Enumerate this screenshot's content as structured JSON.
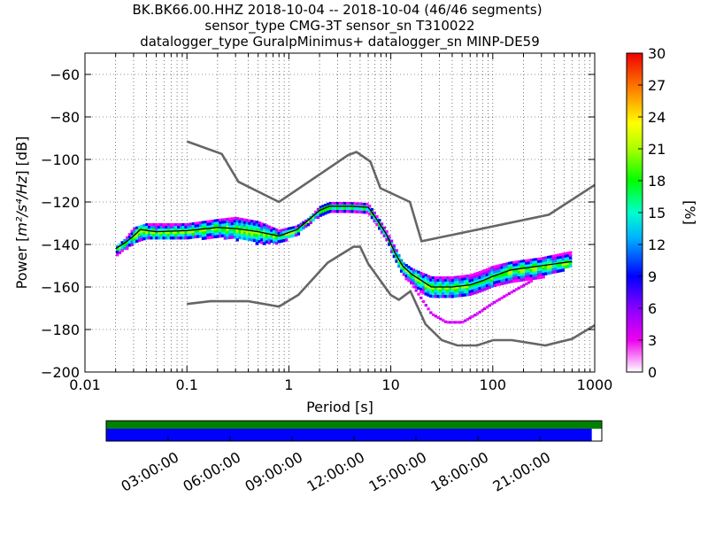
{
  "title": {
    "line1": "BK.BK66.00.HHZ   2018-10-04 -- 2018-10-04  (46/46 segments)",
    "line2": "sensor_type CMG-3T sensor_sn T310022",
    "line3": "datalogger_type GuralpMinimus+ datalogger_sn MINP-DE59"
  },
  "chart_data": {
    "type": "heatmap",
    "xlabel": "Period [s]",
    "ylabel_prefix": "Power [",
    "ylabel_unit": "m²/s⁴/Hz",
    "ylabel_suffix": "] [dB]",
    "x_scale": "log",
    "xlim": [
      0.01,
      1000
    ],
    "ylim": [
      -200,
      -50
    ],
    "x_ticks": [
      0.01,
      0.1,
      1,
      10,
      100,
      1000
    ],
    "x_tick_labels": [
      "0.01",
      "0.1",
      "1",
      "10",
      "100",
      "1000"
    ],
    "y_ticks": [
      -200,
      -180,
      -160,
      -140,
      -120,
      -100,
      -80,
      -60
    ],
    "y_tick_labels": [
      "−200",
      "−180",
      "−160",
      "−140",
      "−120",
      "−100",
      "−80",
      "−60"
    ],
    "grid": true,
    "colorbar": {
      "label": "[%]",
      "ticks": [
        "0",
        "3",
        "6",
        "9",
        "12",
        "15",
        "18",
        "21",
        "24",
        "27",
        "30"
      ],
      "range": [
        0,
        30
      ]
    },
    "nhnm": [
      [
        0.1,
        -91.5
      ],
      [
        0.22,
        -97.4
      ],
      [
        0.32,
        -110.5
      ],
      [
        0.8,
        -120
      ],
      [
        3.8,
        -98
      ],
      [
        4.6,
        -96.5
      ],
      [
        6.3,
        -101
      ],
      [
        7.9,
        -113.5
      ],
      [
        15.4,
        -120
      ],
      [
        20,
        -138.5
      ],
      [
        354.8,
        -126
      ],
      [
        1000,
        -112
      ]
    ],
    "nlnm": [
      [
        0.1,
        -168
      ],
      [
        0.17,
        -166.7
      ],
      [
        0.4,
        -166.7
      ],
      [
        0.8,
        -169.2
      ],
      [
        1.24,
        -163.7
      ],
      [
        2.4,
        -148.6
      ],
      [
        4.3,
        -141.1
      ],
      [
        5,
        -141.1
      ],
      [
        6,
        -149
      ],
      [
        10,
        -163.8
      ],
      [
        12,
        -166
      ],
      [
        15.6,
        -162
      ],
      [
        21.9,
        -177.5
      ],
      [
        31.6,
        -185
      ],
      [
        45,
        -187.5
      ],
      [
        70,
        -187.5
      ],
      [
        101,
        -185
      ],
      [
        154,
        -185
      ],
      [
        328,
        -187.5
      ],
      [
        600,
        -184.4
      ],
      [
        1000,
        -178
      ]
    ],
    "mode": [
      [
        0.02,
        -142
      ],
      [
        0.025,
        -139
      ],
      [
        0.03,
        -136
      ],
      [
        0.035,
        -133
      ],
      [
        0.05,
        -134
      ],
      [
        0.1,
        -133.5
      ],
      [
        0.2,
        -132
      ],
      [
        0.3,
        -132.5
      ],
      [
        0.5,
        -134
      ],
      [
        0.8,
        -136
      ],
      [
        1.2,
        -133
      ],
      [
        1.6,
        -128
      ],
      [
        2,
        -124
      ],
      [
        2.5,
        -122
      ],
      [
        4,
        -122
      ],
      [
        6,
        -122.5
      ],
      [
        7,
        -127
      ],
      [
        9,
        -135
      ],
      [
        11,
        -144
      ],
      [
        13,
        -150
      ],
      [
        16,
        -154
      ],
      [
        20,
        -157
      ],
      [
        25,
        -160
      ],
      [
        40,
        -160
      ],
      [
        60,
        -159
      ],
      [
        80,
        -157
      ],
      [
        100,
        -155
      ],
      [
        150,
        -152
      ],
      [
        300,
        -150
      ],
      [
        600,
        -148
      ]
    ],
    "spread_upper": [
      [
        0.02,
        -141
      ],
      [
        0.025,
        -137
      ],
      [
        0.03,
        -132
      ],
      [
        0.04,
        -130
      ],
      [
        0.1,
        -130
      ],
      [
        0.2,
        -128
      ],
      [
        0.3,
        -127
      ],
      [
        0.5,
        -129
      ],
      [
        0.8,
        -133
      ],
      [
        1.2,
        -131
      ],
      [
        1.6,
        -127
      ],
      [
        2,
        -122
      ],
      [
        2.5,
        -120
      ],
      [
        4,
        -120
      ],
      [
        6,
        -120.5
      ],
      [
        7,
        -125
      ],
      [
        9,
        -133
      ],
      [
        11,
        -141
      ],
      [
        13,
        -148
      ],
      [
        16,
        -151
      ],
      [
        20,
        -153
      ],
      [
        25,
        -155
      ],
      [
        40,
        -155
      ],
      [
        60,
        -154
      ],
      [
        80,
        -152
      ],
      [
        100,
        -150
      ],
      [
        150,
        -148
      ],
      [
        300,
        -146
      ],
      [
        600,
        -143
      ]
    ],
    "spread_lower": [
      [
        0.02,
        -145
      ],
      [
        0.025,
        -142
      ],
      [
        0.03,
        -139
      ],
      [
        0.04,
        -137
      ],
      [
        0.1,
        -137
      ],
      [
        0.2,
        -136
      ],
      [
        0.3,
        -137
      ],
      [
        0.5,
        -139
      ],
      [
        0.8,
        -139
      ],
      [
        1.2,
        -135
      ],
      [
        1.6,
        -130
      ],
      [
        2,
        -126
      ],
      [
        2.5,
        -124
      ],
      [
        4,
        -124
      ],
      [
        6,
        -124.5
      ],
      [
        7,
        -129
      ],
      [
        9,
        -137
      ],
      [
        11,
        -147
      ],
      [
        13,
        -154
      ],
      [
        16,
        -158
      ],
      [
        20,
        -162
      ],
      [
        25,
        -165
      ],
      [
        40,
        -164
      ],
      [
        60,
        -163
      ],
      [
        80,
        -161
      ],
      [
        100,
        -159
      ],
      [
        150,
        -157
      ],
      [
        300,
        -155
      ],
      [
        600,
        -150
      ]
    ],
    "excursion": [
      [
        15,
        -156
      ],
      [
        20,
        -165
      ],
      [
        25,
        -172
      ],
      [
        35,
        -176
      ],
      [
        50,
        -176
      ],
      [
        70,
        -172
      ],
      [
        100,
        -167
      ],
      [
        150,
        -162
      ],
      [
        250,
        -156
      ]
    ],
    "time_ticks": [
      "03:00:00",
      "06:00:00",
      "09:00:00",
      "12:00:00",
      "15:00:00",
      "18:00:00",
      "21:00:00"
    ],
    "data_coverage_fraction": 0.98,
    "gap_fraction": 0.02,
    "colors": {
      "model_curves": "#666666",
      "mode_line": "#000000",
      "coverage_top": "#008000",
      "coverage_bottom": "#0000ff"
    }
  }
}
